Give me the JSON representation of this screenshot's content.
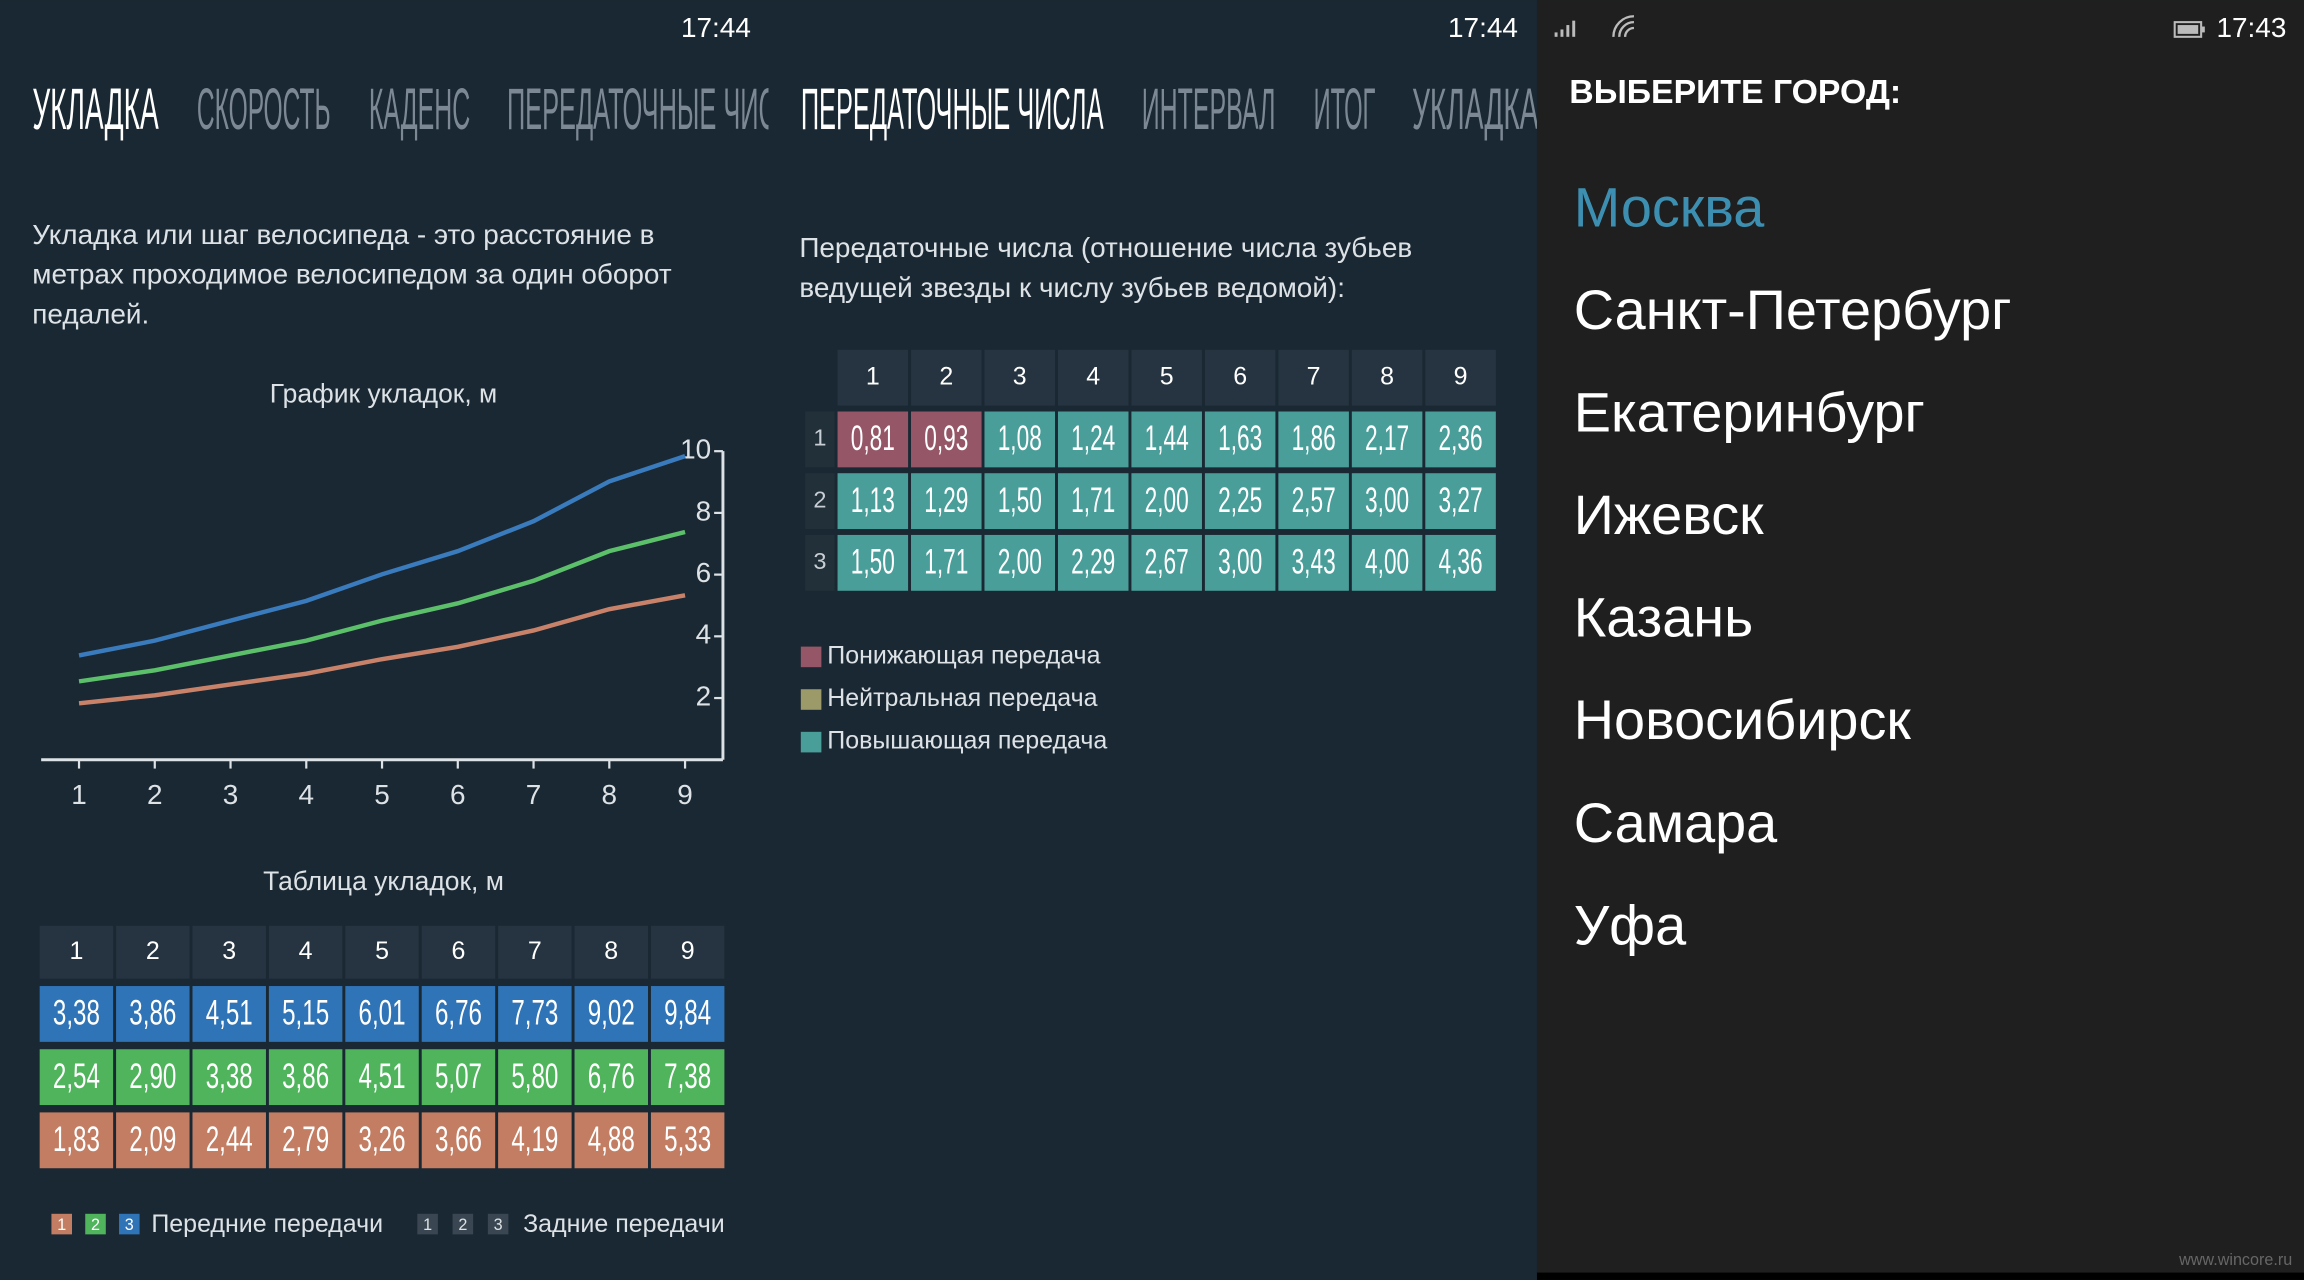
{
  "screens": [
    {
      "time": "17:44",
      "tabs": [
        "УКЛАДКА",
        "СКОРОСТЬ",
        "КАДЕНС",
        "ПЕРЕДАТОЧНЫЕ ЧИСЛА"
      ],
      "description": [
        "Укладка или шаг велосипеда - это расстояние в",
        "метрах проходимое велосипедом за один оборот",
        "педалей."
      ],
      "chart": {
        "type": "line",
        "title": "График укладок, м",
        "x": [
          1,
          2,
          3,
          4,
          5,
          6,
          7,
          8,
          9
        ],
        "xlim": [
          0.5,
          9.5
        ],
        "xticks": [
          1,
          2,
          3,
          4,
          5,
          6,
          7,
          8,
          9
        ],
        "ylim": [
          0,
          10
        ],
        "yticks": [
          2,
          4,
          6,
          8,
          10
        ],
        "series": [
          {
            "color": "#3a7bbd",
            "values": [
              3.38,
              3.86,
              4.51,
              5.15,
              6.01,
              6.76,
              7.73,
              9.02,
              9.84
            ]
          },
          {
            "color": "#5cc06a",
            "values": [
              2.54,
              2.9,
              3.38,
              3.86,
              4.51,
              5.07,
              5.8,
              6.76,
              7.38
            ]
          },
          {
            "color": "#c9826a",
            "values": [
              1.83,
              2.09,
              2.44,
              2.79,
              3.26,
              3.66,
              4.19,
              4.88,
              5.33
            ]
          }
        ]
      },
      "table": {
        "title": "Таблица укладок, м",
        "header": [
          "1",
          "2",
          "3",
          "4",
          "5",
          "6",
          "7",
          "8",
          "9"
        ],
        "row_colors": [
          "#2f74b7",
          "#4fb45c",
          "#c27d63"
        ],
        "rows": [
          [
            "3,38",
            "3,86",
            "4,51",
            "5,15",
            "6,01",
            "6,76",
            "7,73",
            "9,02",
            "9,84"
          ],
          [
            "2,54",
            "2,90",
            "3,38",
            "3,86",
            "4,51",
            "5,07",
            "5,80",
            "6,76",
            "7,38"
          ],
          [
            "1,83",
            "2,09",
            "2,44",
            "2,79",
            "3,26",
            "3,66",
            "4,19",
            "4,88",
            "5,33"
          ]
        ]
      },
      "legend": {
        "front": {
          "keys": [
            "1",
            "2",
            "3"
          ],
          "colors": [
            "#c27d63",
            "#4fb45c",
            "#2f74b7"
          ],
          "label": "Передние передачи"
        },
        "rear": {
          "keys": [
            "1",
            "2",
            "3"
          ],
          "label": "Задние передачи"
        }
      }
    },
    {
      "time": "17:44",
      "tabs": [
        "ПЕРЕДАТОЧНЫЕ ЧИСЛА",
        "ИНТЕРВАЛ",
        "ИТОГ",
        "УКЛАДКА"
      ],
      "description": [
        "Передаточные числа (отношение числа зубьев",
        "ведущей звезды к числу зубьев ведомой):"
      ],
      "table": {
        "header": [
          "1",
          "2",
          "3",
          "4",
          "5",
          "6",
          "7",
          "8",
          "9"
        ],
        "row_labels": [
          "1",
          "2",
          "3"
        ],
        "rows": [
          [
            "0,81",
            "0,93",
            "1,08",
            "1,24",
            "1,44",
            "1,63",
            "1,86",
            "2,17",
            "2,36"
          ],
          [
            "1,13",
            "1,29",
            "1,50",
            "1,71",
            "2,00",
            "2,25",
            "2,57",
            "3,00",
            "3,27"
          ],
          [
            "1,50",
            "1,71",
            "2,00",
            "2,29",
            "2,67",
            "3,00",
            "3,43",
            "4,00",
            "4,36"
          ]
        ]
      },
      "legend": [
        {
          "label": "Понижающая передача",
          "color": "#955767"
        },
        {
          "label": "Нейтральная передача",
          "color": "#9c9a68"
        },
        {
          "label": "Повышающая передача",
          "color": "#4a9e9a"
        }
      ]
    },
    {
      "time": "17:43",
      "title": "ВЫБЕРИТЕ ГОРОД:",
      "cities": [
        "Москва",
        "Санкт-Петербург",
        "Екатеринбург",
        "Ижевск",
        "Казань",
        "Новосибирск",
        "Самара",
        "Уфа"
      ],
      "selected_index": 0
    }
  ],
  "watermark": "www.wincore.ru"
}
